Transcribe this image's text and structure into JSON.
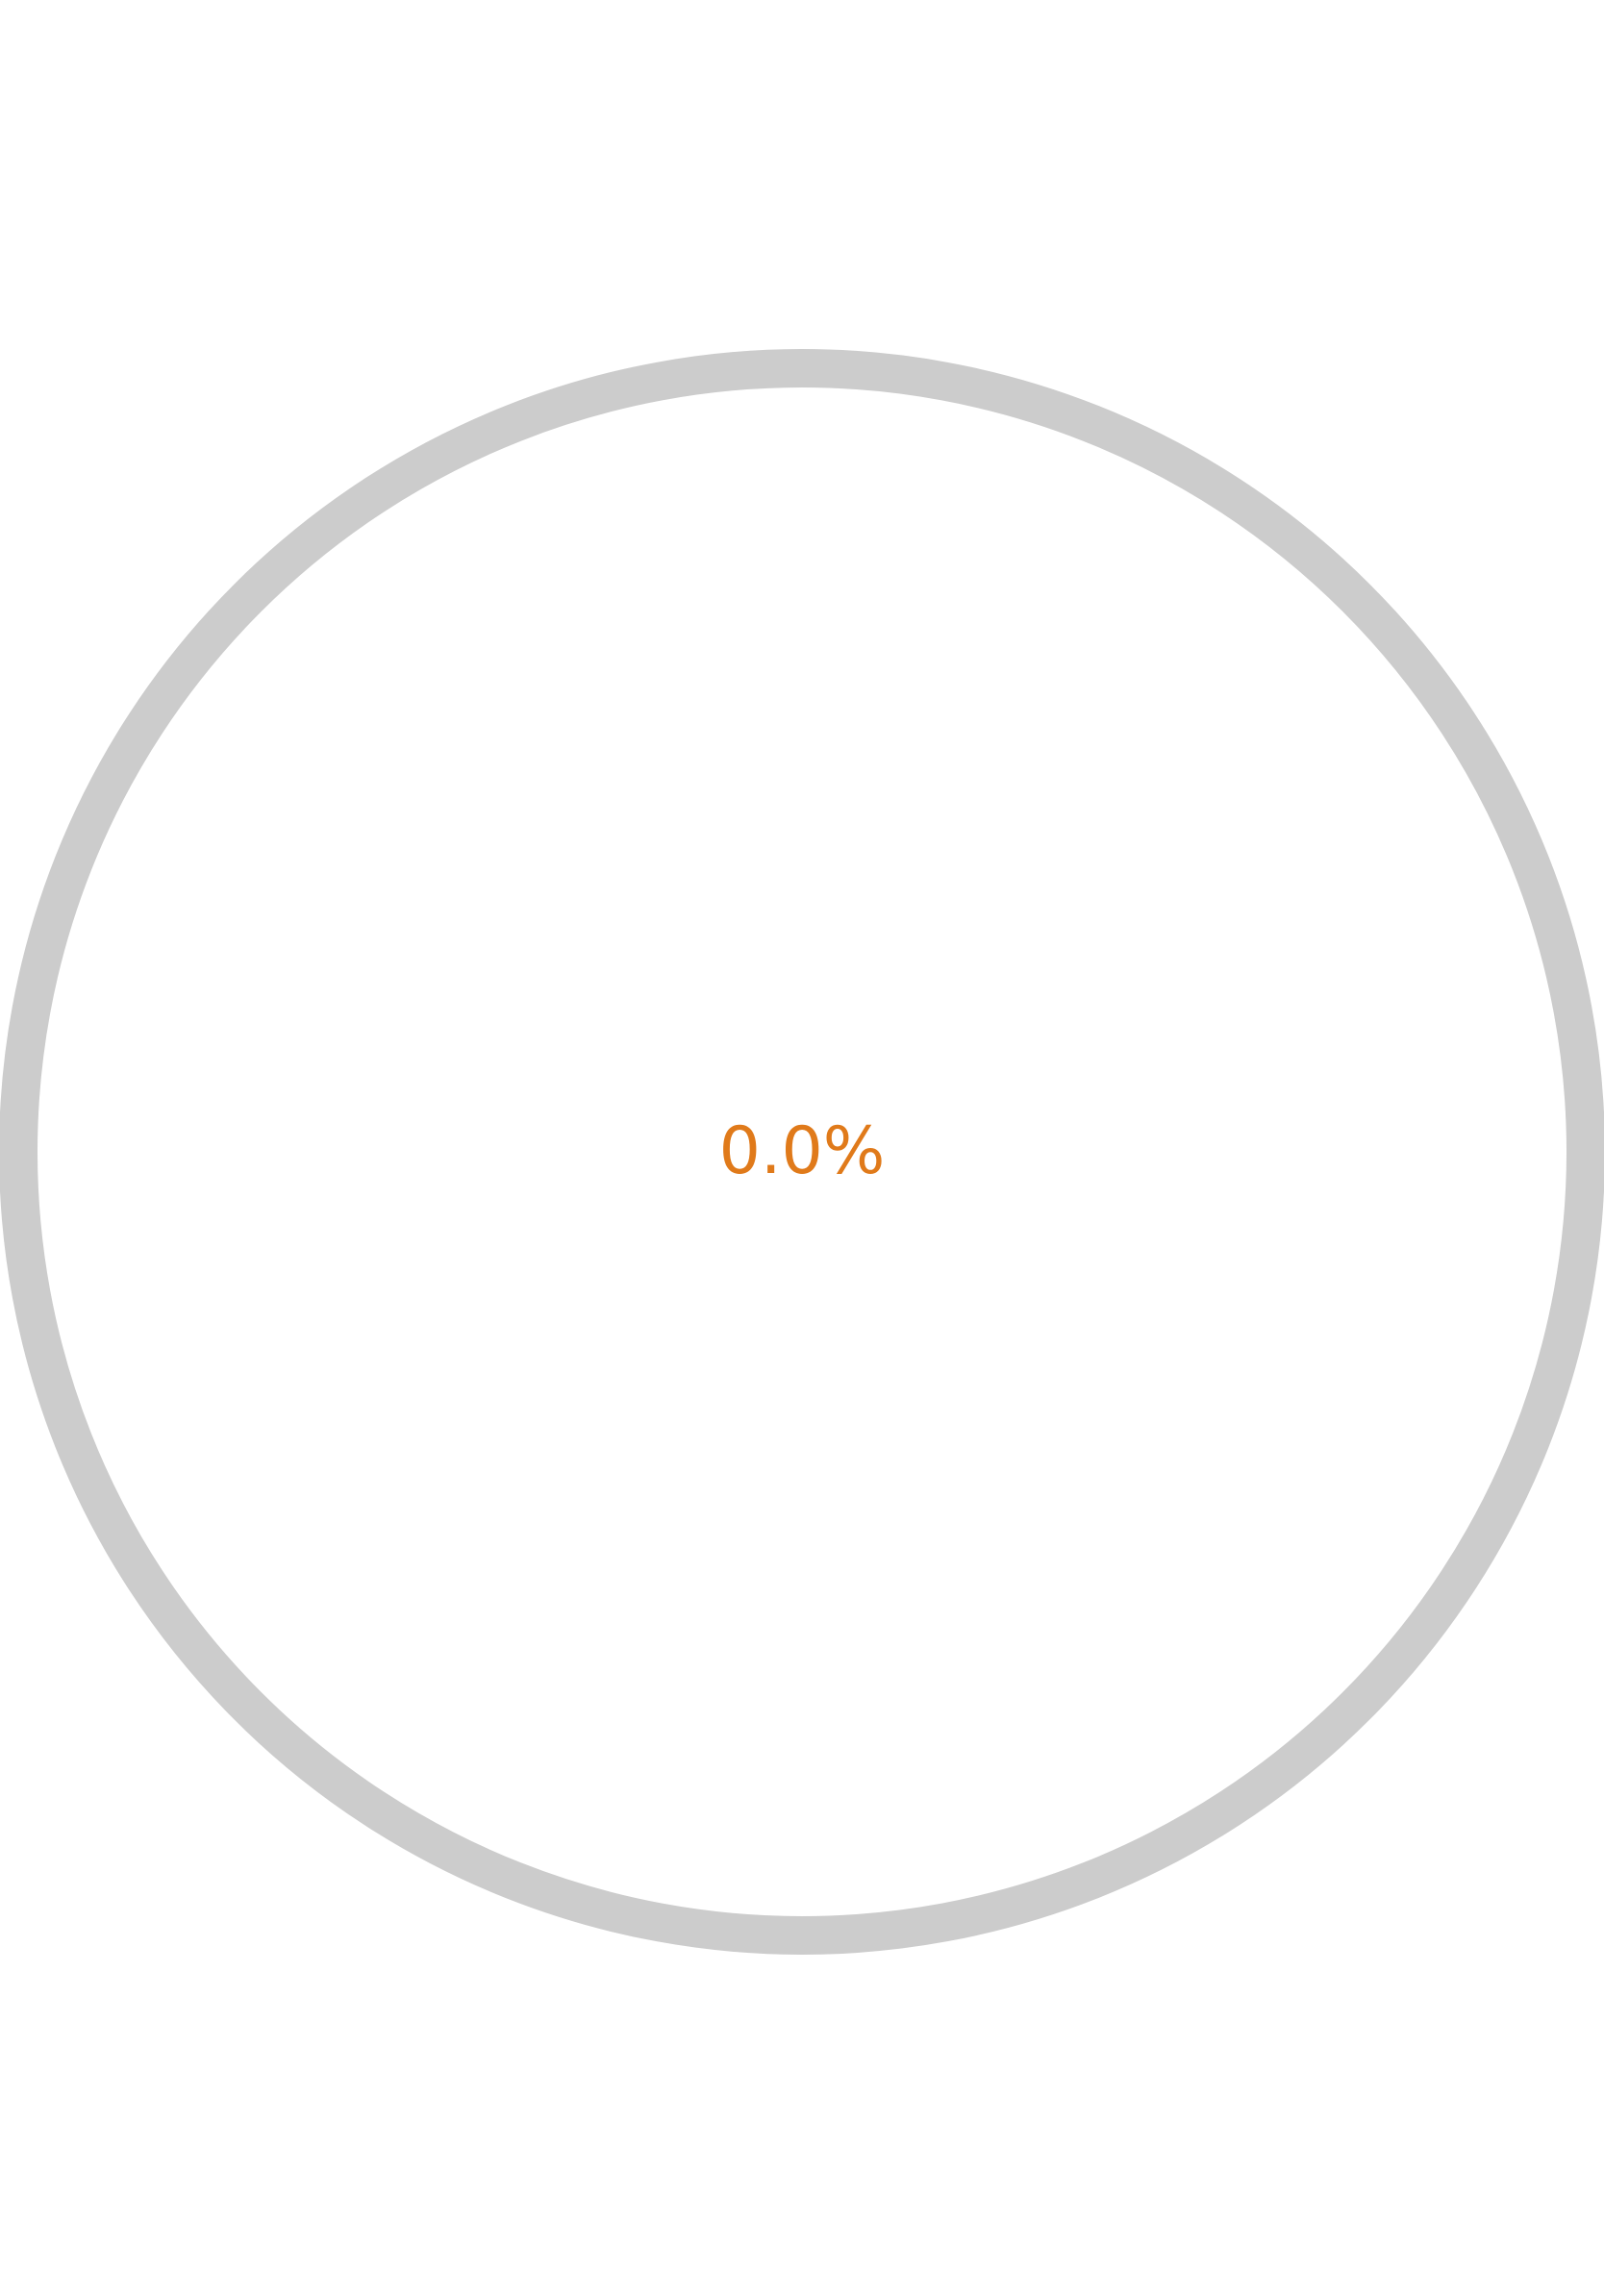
{
  "progress": {
    "value": 0.0,
    "label": "0.0%"
  },
  "colors": {
    "track": "#cccccc",
    "accent": "#e07a1a",
    "background": "#ffffff"
  }
}
